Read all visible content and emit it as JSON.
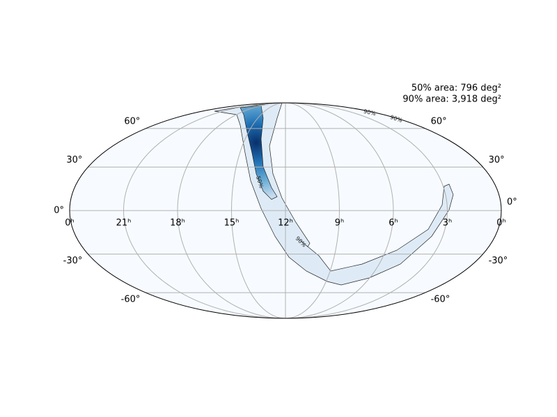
{
  "chart_data": {
    "type": "skymap",
    "projection": "mollweide",
    "annotations": [
      "50% area: 796 deg²",
      "90% area: 3,918 deg²"
    ],
    "contour_labels": [
      "50%",
      "90%",
      "90%",
      "90%"
    ],
    "xticks": [
      {
        "value": 24,
        "label": "0ʰ"
      },
      {
        "value": 21,
        "label": "21ʰ"
      },
      {
        "value": 18,
        "label": "18ʰ"
      },
      {
        "value": 15,
        "label": "15ʰ"
      },
      {
        "value": 12,
        "label": "12ʰ"
      },
      {
        "value": 9,
        "label": "9ʰ"
      },
      {
        "value": 6,
        "label": "6ʰ"
      },
      {
        "value": 3,
        "label": "3ʰ"
      },
      {
        "value": 0,
        "label": "0ʰ"
      }
    ],
    "xlim": [
      24,
      0
    ],
    "yticks": [
      {
        "value": 60,
        "label": "60°"
      },
      {
        "value": 30,
        "label": "30°"
      },
      {
        "value": 0,
        "label": "0°"
      },
      {
        "value": -30,
        "label": "-30°"
      },
      {
        "value": -60,
        "label": "-60°"
      }
    ],
    "ylim": [
      -90,
      90
    ],
    "grid": true,
    "color": "#08519c"
  }
}
